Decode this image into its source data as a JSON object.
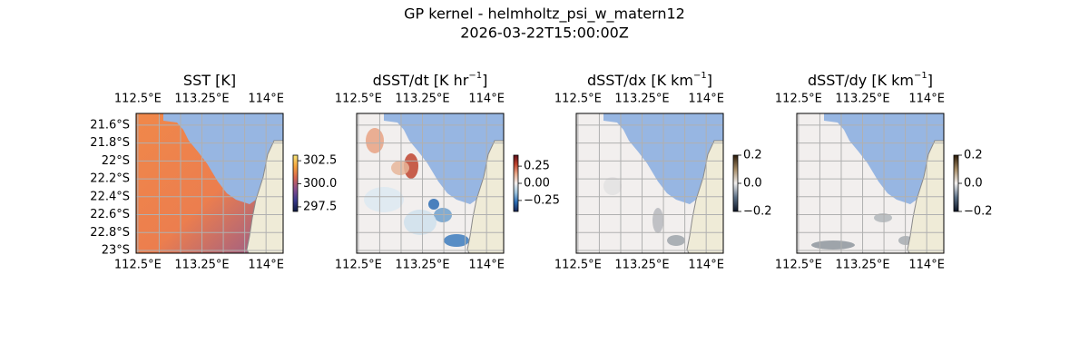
{
  "chart_data": [
    {
      "type": "map",
      "suptitle": "GP kernel - helmholtz_psi_w_matern12",
      "subtitle": "2026-03-22T15:00:00Z",
      "title_parts": [
        "SST [K]"
      ],
      "xlim": [
        112.48,
        114.2
      ],
      "ylim": [
        -23.03,
        -21.47
      ],
      "xticks": [
        {
          "value": 112.5,
          "label": "112.5°E"
        },
        {
          "value": 113.25,
          "label": "113.25°E"
        },
        {
          "value": 114,
          "label": "114°E"
        }
      ],
      "yticks": [
        {
          "value": -21.6,
          "label": "21.6°S"
        },
        {
          "value": -21.8,
          "label": "21.8°S"
        },
        {
          "value": -22,
          "label": "22°S"
        },
        {
          "value": -22.2,
          "label": "22.2°S"
        },
        {
          "value": -22.4,
          "label": "22.4°S"
        },
        {
          "value": -22.6,
          "label": "22.6°S"
        },
        {
          "value": -22.8,
          "label": "22.8°S"
        },
        {
          "value": -23,
          "label": "23°S"
        }
      ],
      "xgrid": [
        112.5,
        112.75,
        113,
        113.25,
        113.5,
        113.75,
        114
      ],
      "ygrid": [
        -21.6,
        -21.8,
        -22,
        -22.2,
        -22.4,
        -22.6,
        -22.8,
        -23
      ],
      "clim": [
        297.0,
        303.1
      ],
      "cticks": [
        {
          "value": 297.5,
          "label": "297.5"
        },
        {
          "value": 300,
          "label": "300.0"
        },
        {
          "value": 302.5,
          "label": "302.5"
        }
      ],
      "colors": [
        "#0d1a3f",
        "#3b3a8f",
        "#8a4f8e",
        "#d7664f",
        "#f6a33b",
        "#f8e67a"
      ]
    },
    {
      "type": "map",
      "title_parts": [
        "dSST/dt [K hr",
        "−1",
        "]"
      ],
      "xlim": [
        112.48,
        114.2
      ],
      "ylim": [
        -23.03,
        -21.47
      ],
      "xticks": [
        {
          "value": 112.5,
          "label": "112.5°E"
        },
        {
          "value": 113.25,
          "label": "113.25°E"
        },
        {
          "value": 114,
          "label": "114°E"
        }
      ],
      "xgrid": [
        112.5,
        112.75,
        113,
        113.25,
        113.5,
        113.75,
        114
      ],
      "ygrid": [
        -21.6,
        -21.8,
        -22,
        -22.2,
        -22.4,
        -22.6,
        -22.8,
        -23
      ],
      "clim": [
        -0.41,
        0.41
      ],
      "cticks": [
        {
          "value": -0.25,
          "label": "−0.25"
        },
        {
          "value": 0,
          "label": "0.00"
        },
        {
          "value": 0.25,
          "label": "0.25"
        }
      ],
      "colors": [
        "#182656",
        "#2b6cb4",
        "#9cc3dc",
        "#f2efee",
        "#e8a98a",
        "#c0442f",
        "#5e0f18"
      ]
    },
    {
      "type": "map",
      "title_parts": [
        "dSST/dx [K km",
        "−1",
        "]"
      ],
      "xlim": [
        112.48,
        114.2
      ],
      "ylim": [
        -23.03,
        -21.47
      ],
      "xticks": [
        {
          "value": 112.5,
          "label": "112.5°E"
        },
        {
          "value": 113.25,
          "label": "113.25°E"
        },
        {
          "value": 114,
          "label": "114°E"
        }
      ],
      "xgrid": [
        112.5,
        112.75,
        113,
        113.25,
        113.5,
        113.75,
        114
      ],
      "ygrid": [
        -21.6,
        -21.8,
        -22,
        -22.2,
        -22.4,
        -22.6,
        -22.8,
        -23
      ],
      "clim": [
        -0.2,
        0.2
      ],
      "cticks": [
        {
          "value": -0.2,
          "label": "−0.2"
        },
        {
          "value": 0,
          "label": "0.0"
        },
        {
          "value": 0.2,
          "label": "0.2"
        }
      ],
      "colors": [
        "#0c1424",
        "#5a6f86",
        "#f1efee",
        "#a48a64",
        "#2a1a08"
      ]
    },
    {
      "type": "map",
      "title_parts": [
        "dSST/dy [K km",
        "−1",
        "]"
      ],
      "xlim": [
        112.48,
        114.2
      ],
      "ylim": [
        -23.03,
        -21.47
      ],
      "xticks": [
        {
          "value": 112.5,
          "label": "112.5°E"
        },
        {
          "value": 113.25,
          "label": "113.25°E"
        },
        {
          "value": 114,
          "label": "114°E"
        }
      ],
      "xgrid": [
        112.5,
        112.75,
        113,
        113.25,
        113.5,
        113.75,
        114
      ],
      "ygrid": [
        -21.6,
        -21.8,
        -22,
        -22.2,
        -22.4,
        -22.6,
        -22.8,
        -23
      ],
      "clim": [
        -0.2,
        0.2
      ],
      "cticks": [
        {
          "value": -0.2,
          "label": "−0.2"
        },
        {
          "value": 0,
          "label": "0.0"
        },
        {
          "value": 0.2,
          "label": "0.2"
        }
      ],
      "colors": [
        "#0c1424",
        "#5a6f86",
        "#f1efee",
        "#a48a64",
        "#2a1a08"
      ]
    }
  ]
}
